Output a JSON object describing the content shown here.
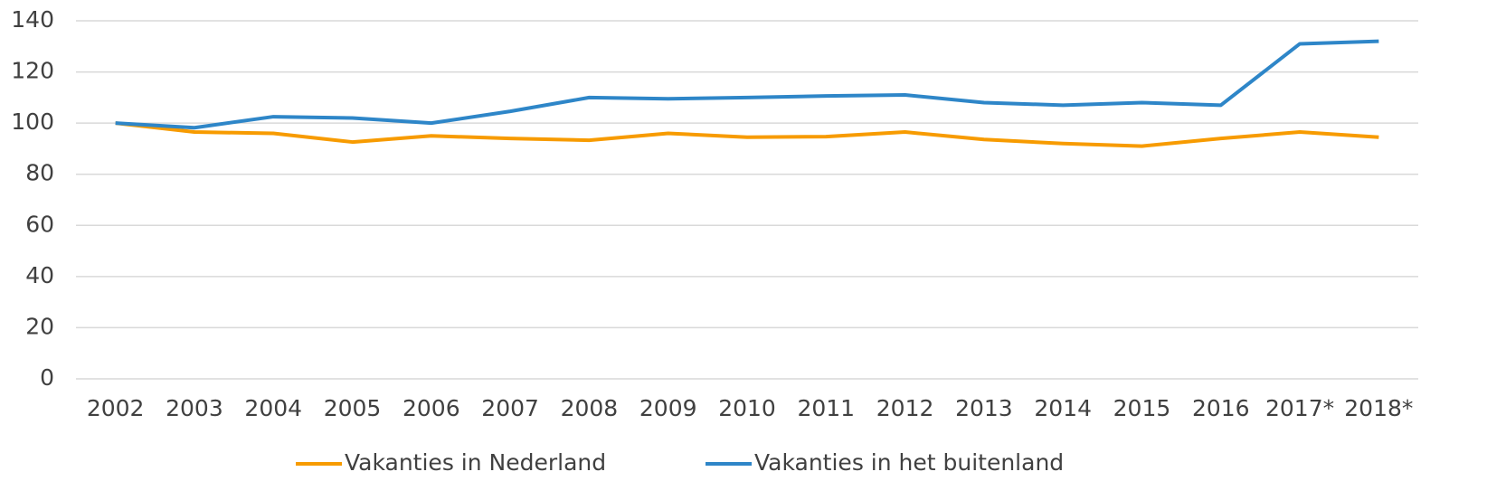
{
  "chart_data": {
    "type": "line",
    "categories": [
      "2002",
      "2003",
      "2004",
      "2005",
      "2006",
      "2007",
      "2008",
      "2009",
      "2010",
      "2011",
      "2012",
      "2013",
      "2014",
      "2015",
      "2016",
      "2017*",
      "2018*"
    ],
    "series": [
      {
        "name": "Vakanties in Nederland",
        "color": "#f79b00",
        "values": [
          100,
          96.5,
          96,
          92.6,
          95,
          94,
          93.3,
          96,
          94.5,
          94.7,
          96.5,
          93.6,
          92,
          91,
          94,
          96.5,
          94.5
        ]
      },
      {
        "name": "Vakanties in het buitenland",
        "color": "#2e86c8",
        "values": [
          100,
          98.2,
          102.5,
          102,
          100,
          104.6,
          110,
          109.5,
          110,
          110.6,
          111,
          108,
          107,
          108,
          107,
          131,
          132
        ]
      }
    ],
    "ylim": [
      0,
      140
    ],
    "yticks": [
      0,
      20,
      40,
      60,
      80,
      100,
      120,
      140
    ],
    "grid": true,
    "legend": "bottom"
  }
}
